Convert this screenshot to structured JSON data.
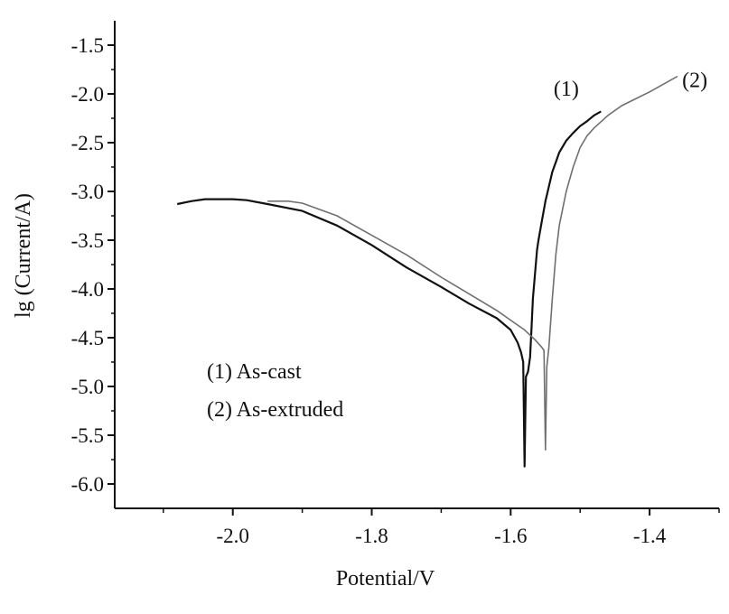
{
  "chart_data": {
    "type": "line",
    "title": "",
    "xlabel": "Potential/V",
    "ylabel": "lg (Current/A)",
    "xlim": [
      -2.17,
      -1.3
    ],
    "ylim": [
      -6.25,
      -1.25
    ],
    "x_ticks": [
      -2.0,
      -1.8,
      -1.6,
      -1.4
    ],
    "x_tick_labels": [
      "-2.0",
      "-1.8",
      "-1.6",
      "-1.4"
    ],
    "y_ticks": [
      -1.5,
      -2.0,
      -2.5,
      -3.0,
      -3.5,
      -4.0,
      -4.5,
      -5.0,
      -5.5,
      -6.0
    ],
    "y_tick_labels": [
      "-1.5",
      "-2.0",
      "-2.5",
      "-3.0",
      "-3.5",
      "-4.0",
      "-4.5",
      "-5.0",
      "-5.5",
      "-6.0"
    ],
    "grid": false,
    "legend_position": "lower-left inside plot",
    "legend": [
      "(1) As-cast",
      "(2) As-extruded"
    ],
    "series": [
      {
        "name": "(1) As-cast",
        "tag": "(1)",
        "color": "#111111",
        "x": [
          -2.08,
          -2.06,
          -2.04,
          -2.02,
          -2.0,
          -1.98,
          -1.95,
          -1.9,
          -1.85,
          -1.8,
          -1.75,
          -1.7,
          -1.66,
          -1.62,
          -1.6,
          -1.59,
          -1.585,
          -1.582,
          -1.58,
          -1.578,
          -1.575,
          -1.572,
          -1.57,
          -1.568,
          -1.565,
          -1.562,
          -1.56,
          -1.555,
          -1.55,
          -1.545,
          -1.54,
          -1.535,
          -1.53,
          -1.52,
          -1.51,
          -1.5,
          -1.49,
          -1.48,
          -1.47
        ],
        "y": [
          -3.13,
          -3.1,
          -3.08,
          -3.08,
          -3.08,
          -3.09,
          -3.13,
          -3.2,
          -3.35,
          -3.55,
          -3.78,
          -3.98,
          -4.15,
          -4.3,
          -4.42,
          -4.55,
          -4.65,
          -4.75,
          -5.82,
          -4.9,
          -4.85,
          -4.7,
          -4.4,
          -4.1,
          -3.85,
          -3.6,
          -3.5,
          -3.3,
          -3.1,
          -2.95,
          -2.8,
          -2.7,
          -2.6,
          -2.48,
          -2.4,
          -2.33,
          -2.28,
          -2.22,
          -2.18
        ]
      },
      {
        "name": "(2) As-extruded",
        "tag": "(2)",
        "color": "#6f6f6f",
        "x": [
          -1.95,
          -1.92,
          -1.9,
          -1.85,
          -1.8,
          -1.75,
          -1.7,
          -1.66,
          -1.62,
          -1.6,
          -1.58,
          -1.565,
          -1.555,
          -1.552,
          -1.55,
          -1.548,
          -1.545,
          -1.54,
          -1.535,
          -1.53,
          -1.52,
          -1.51,
          -1.5,
          -1.49,
          -1.48,
          -1.46,
          -1.44,
          -1.42,
          -1.4,
          -1.38,
          -1.36
        ],
        "y": [
          -3.1,
          -3.1,
          -3.12,
          -3.25,
          -3.45,
          -3.65,
          -3.88,
          -4.05,
          -4.22,
          -4.32,
          -4.42,
          -4.52,
          -4.6,
          -4.63,
          -5.65,
          -4.8,
          -4.6,
          -4.1,
          -3.65,
          -3.35,
          -3.0,
          -2.75,
          -2.55,
          -2.43,
          -2.35,
          -2.22,
          -2.12,
          -2.05,
          -1.98,
          -1.9,
          -1.82
        ]
      }
    ]
  }
}
